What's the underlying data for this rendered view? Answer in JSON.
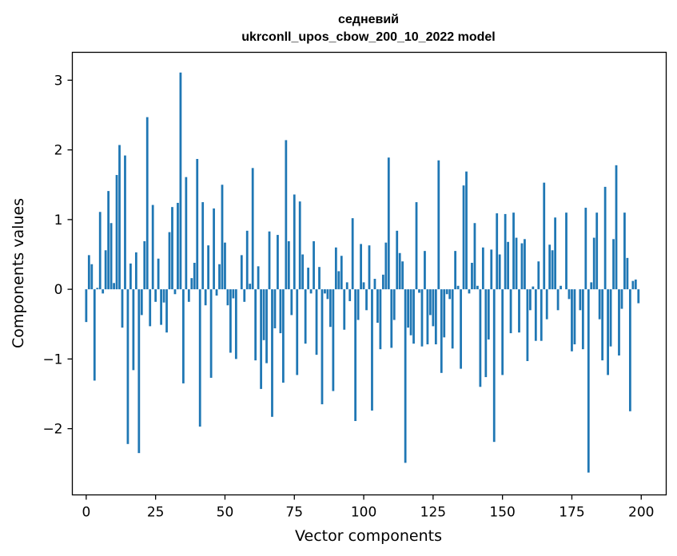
{
  "chart_data": {
    "type": "bar",
    "title_line1": "седневий",
    "title_line2": "ukrconll_upos_cbow_200_10_2022 model",
    "xlabel": "Vector components",
    "ylabel": "Components values",
    "xlim": [
      -5,
      209
    ],
    "ylim": [
      -2.95,
      3.4
    ],
    "xticks": [
      0,
      25,
      50,
      75,
      100,
      125,
      150,
      175,
      200
    ],
    "yticks": [
      -2,
      -1,
      0,
      1,
      2,
      3
    ],
    "xtick_labels": [
      "0",
      "25",
      "50",
      "75",
      "100",
      "125",
      "150",
      "175",
      "200"
    ],
    "ytick_labels": [
      "−2",
      "−1",
      "0",
      "1",
      "2",
      "3"
    ],
    "bar_color": "#1f77b4",
    "grid": false,
    "values": [
      -0.47,
      0.49,
      0.36,
      -1.31,
      0.02,
      1.11,
      -0.06,
      0.56,
      1.41,
      0.95,
      0.09,
      1.64,
      2.07,
      -0.55,
      1.92,
      -2.22,
      0.37,
      -1.16,
      0.53,
      -2.35,
      -0.37,
      0.69,
      2.47,
      -0.53,
      1.21,
      -0.18,
      0.44,
      -0.51,
      -0.19,
      -0.62,
      0.82,
      1.18,
      -0.07,
      1.24,
      3.11,
      -1.35,
      1.61,
      -0.18,
      0.16,
      0.38,
      1.87,
      -1.97,
      1.25,
      -0.23,
      0.63,
      -1.27,
      1.16,
      -0.09,
      0.36,
      1.5,
      0.67,
      -0.23,
      -0.91,
      -0.13,
      -1.0,
      0.0,
      0.49,
      -0.18,
      0.84,
      0.08,
      1.74,
      -1.02,
      0.33,
      -1.43,
      -0.73,
      -1.06,
      0.83,
      -1.83,
      -0.56,
      0.78,
      -0.63,
      -1.34,
      2.14,
      0.69,
      -0.37,
      1.36,
      -1.23,
      1.26,
      0.5,
      -0.78,
      0.31,
      -0.06,
      0.69,
      -0.94,
      0.32,
      -1.65,
      -0.06,
      -0.14,
      -0.54,
      -1.46,
      0.6,
      0.26,
      0.48,
      -0.58,
      0.1,
      -0.17,
      1.02,
      -1.89,
      -0.44,
      0.65,
      0.1,
      -0.3,
      0.63,
      -1.74,
      0.15,
      -0.48,
      -0.86,
      0.21,
      0.67,
      1.89,
      -0.84,
      -0.44,
      0.84,
      0.52,
      0.4,
      -2.49,
      -0.55,
      -0.66,
      -0.78,
      1.25,
      -0.05,
      -0.82,
      0.55,
      -0.79,
      -0.37,
      -0.53,
      -0.79,
      1.85,
      -1.2,
      -0.69,
      -0.07,
      -0.14,
      -0.85,
      0.55,
      0.05,
      -1.14,
      1.49,
      1.69,
      -0.06,
      0.38,
      0.95,
      0.05,
      -1.4,
      0.6,
      -1.26,
      -0.72,
      0.57,
      -2.19,
      1.09,
      0.5,
      -1.23,
      1.08,
      0.68,
      -0.63,
      1.1,
      0.74,
      -0.62,
      0.66,
      0.72,
      -1.03,
      -0.3,
      0.04,
      -0.74,
      0.4,
      -0.74,
      1.53,
      -0.43,
      0.64,
      0.56,
      1.03,
      -0.3,
      0.05,
      0.0,
      1.1,
      -0.14,
      -0.89,
      -0.79,
      0.0,
      -0.3,
      -0.86,
      1.17,
      -2.63,
      0.1,
      0.74,
      1.1,
      -0.43,
      -1.02,
      1.47,
      -1.23,
      -0.82,
      0.72,
      1.78,
      -0.95,
      -0.28,
      1.1,
      0.45,
      -1.75,
      0.12,
      0.14,
      -0.2
    ]
  }
}
